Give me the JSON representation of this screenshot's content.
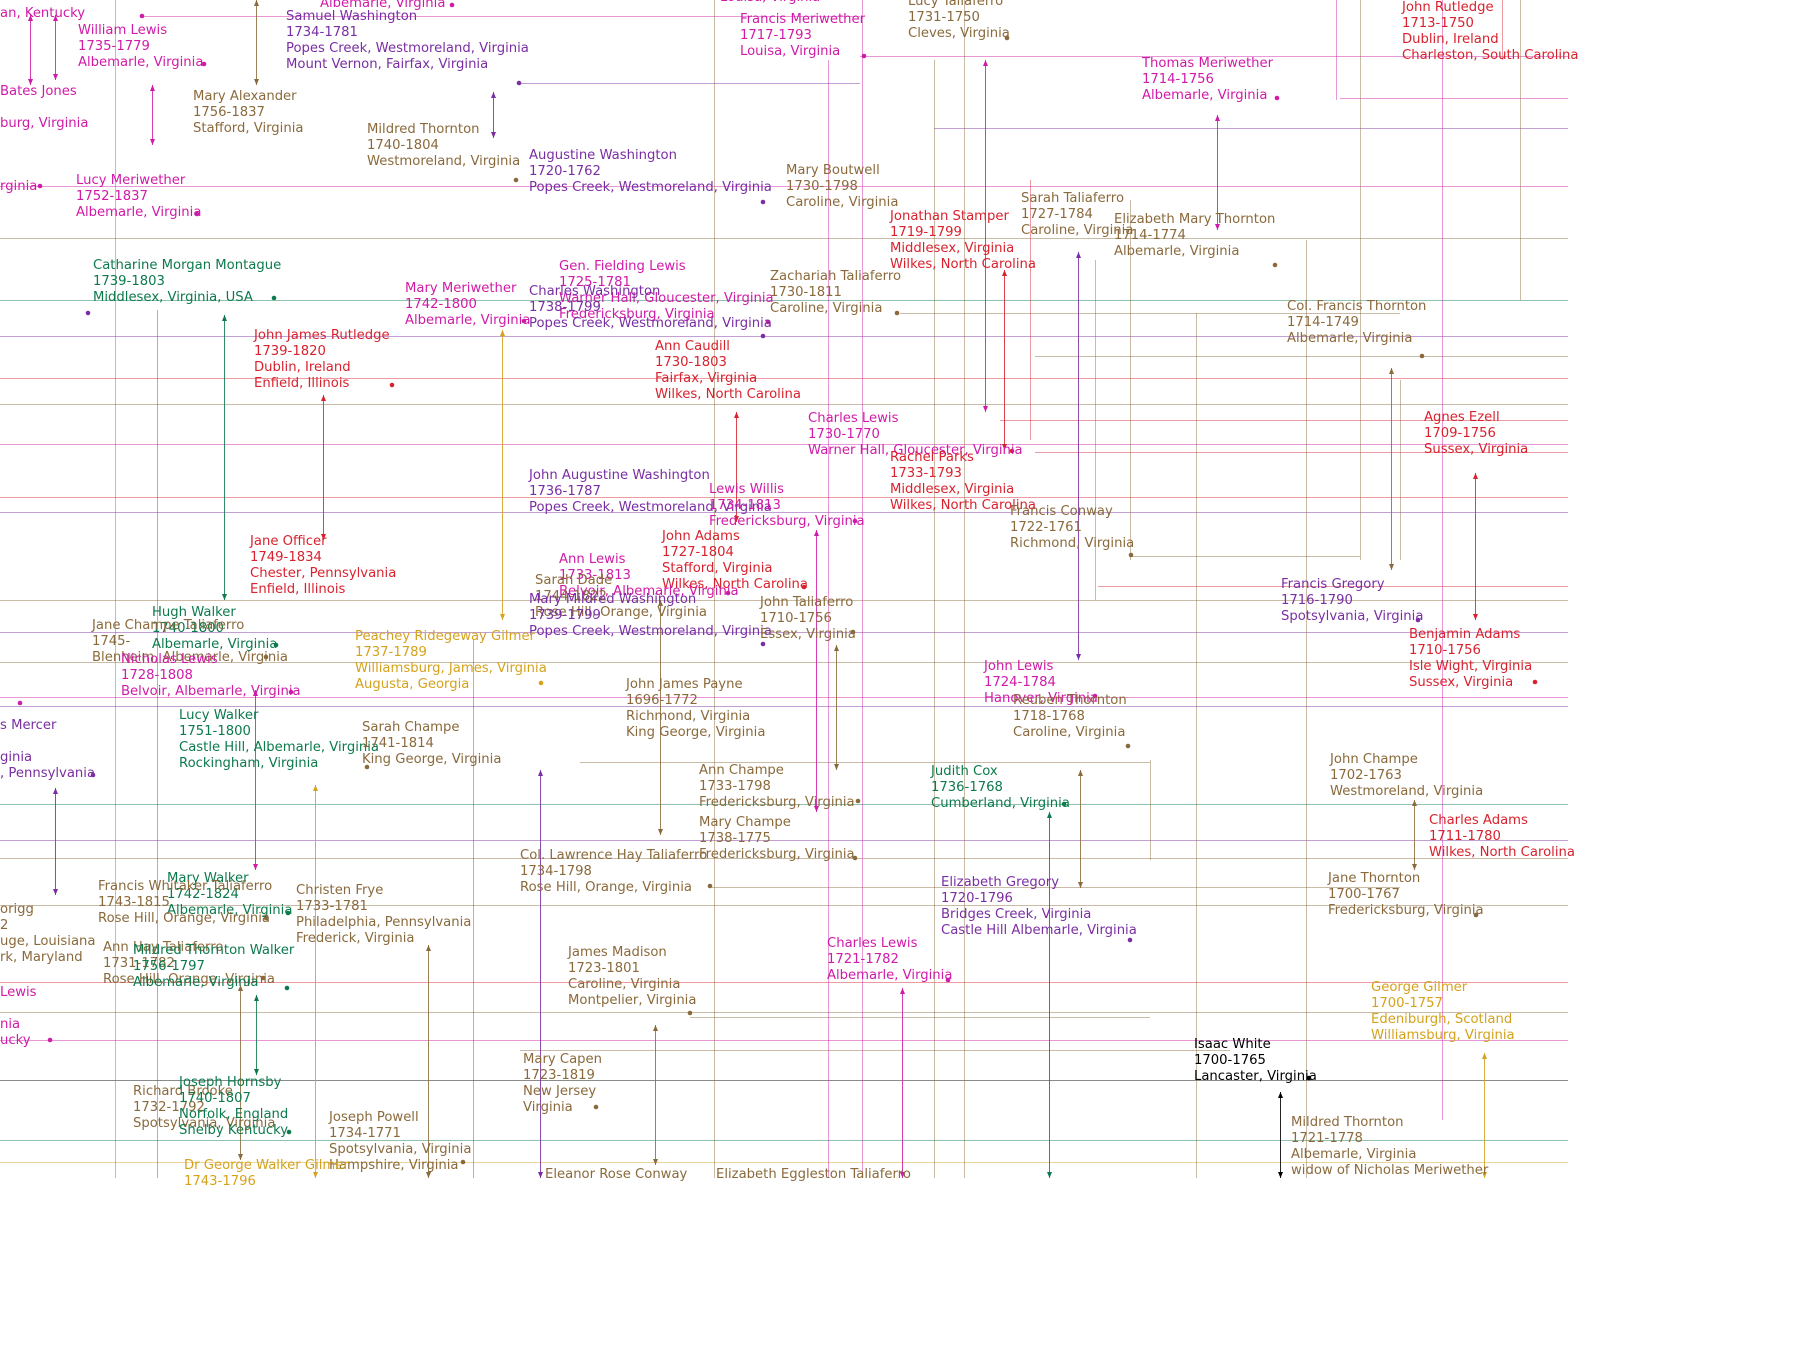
{
  "colors": {
    "magenta": "#d01ba8",
    "purple": "#7a2ea3",
    "red": "#d8222e",
    "brown": "#8a6a3c",
    "green": "#0d7a4d",
    "gold": "#d4a21c",
    "black": "#000000"
  },
  "people": [
    {
      "id": "p1",
      "color": "magenta",
      "lines": [
        "William Lewis",
        "1735-1779",
        "Albemarle, Virginia"
      ]
    },
    {
      "id": "p2",
      "color": "purple",
      "lines": [
        "Samuel Washington",
        "1734-1781",
        "Popes Creek, Westmoreland, Virginia",
        "Mount Vernon, Fairfax, Virginia"
      ]
    },
    {
      "id": "p3",
      "color": "magenta",
      "lines": [
        "Francis Meriwether",
        "1717-1793",
        "Louisa, Virginia"
      ]
    },
    {
      "id": "p4",
      "color": "brown",
      "lines": [
        "Lucy Taliaferro",
        "1731-1750",
        "Cleves, Virginia"
      ]
    },
    {
      "id": "p5",
      "color": "red",
      "lines": [
        "John Rutledge",
        "1713-1750",
        "Dublin, Ireland",
        "Charleston, South Carolina"
      ]
    },
    {
      "id": "p6",
      "color": "magenta",
      "lines": [
        "Thomas Meriwether",
        "1714-1756",
        "Albemarle, Virginia"
      ]
    },
    {
      "id": "p7",
      "color": "brown",
      "lines": [
        "Mary Alexander",
        "1756-1837",
        "Stafford, Virginia"
      ]
    },
    {
      "id": "p8",
      "color": "brown",
      "lines": [
        "Mildred Thornton",
        "1740-1804",
        "Westmoreland, Virginia"
      ]
    },
    {
      "id": "p9",
      "color": "purple",
      "lines": [
        "Augustine Washington",
        "1720-1762",
        "Popes Creek, Westmoreland, Virginia"
      ]
    },
    {
      "id": "p10",
      "color": "brown",
      "lines": [
        "Mary Boutwell",
        "1730-1798",
        "Caroline, Virginia"
      ]
    },
    {
      "id": "p11",
      "color": "magenta",
      "lines": [
        "Lucy Meriwether",
        "1752-1837",
        "Albemarle, Virginia"
      ]
    },
    {
      "id": "p12",
      "color": "red",
      "lines": [
        "Jonathan Stamper",
        "1719-1799",
        "Middlesex, Virginia",
        "Wilkes, North Carolina"
      ]
    },
    {
      "id": "p13",
      "color": "brown",
      "lines": [
        "Sarah Taliaferro",
        "1727-1784",
        "Caroline, Virginia"
      ]
    },
    {
      "id": "p14",
      "color": "brown",
      "lines": [
        "Elizabeth Mary Thornton",
        "1714-1774",
        "Albemarle, Virginia"
      ]
    },
    {
      "id": "p15",
      "color": "green",
      "lines": [
        "Catharine Morgan Montague",
        "1739-1803",
        "Middlesex, Virginia, USA"
      ]
    },
    {
      "id": "p16",
      "color": "magenta",
      "lines": [
        "Gen. Fielding Lewis",
        "1725-1781",
        "Warner Hall, Gloucester, Virginia",
        "Fredericksburg, Virginia"
      ]
    },
    {
      "id": "p17",
      "color": "brown",
      "lines": [
        "Zachariah Taliaferro",
        "1730-1811",
        "Caroline, Virginia"
      ]
    },
    {
      "id": "p18",
      "color": "magenta",
      "lines": [
        "Mary Meriwether",
        "1742-1800",
        "Albemarle, Virginia"
      ]
    },
    {
      "id": "p19",
      "color": "purple",
      "lines": [
        "Charles Washington",
        "1738-1799",
        "Popes Creek, Westmoreland, Virginia"
      ]
    },
    {
      "id": "p20",
      "color": "brown",
      "lines": [
        "Col. Francis Thornton",
        "1714-1749",
        "Albemarle, Virginia"
      ]
    },
    {
      "id": "p21",
      "color": "red",
      "lines": [
        "John James Rutledge",
        "1739-1820",
        "Dublin, Ireland",
        "Enfield, Illinois"
      ]
    },
    {
      "id": "p22",
      "color": "red",
      "lines": [
        "Ann Caudill",
        "1730-1803",
        "Fairfax, Virginia",
        "Wilkes, North Carolina"
      ]
    },
    {
      "id": "p23",
      "color": "red",
      "lines": [
        "Agnes Ezell",
        "1709-1756",
        "Sussex, Virginia"
      ]
    },
    {
      "id": "p24",
      "color": "magenta",
      "lines": [
        "Charles Lewis",
        "1730-1770",
        "Warner Hall, Gloucester, Virginia"
      ]
    },
    {
      "id": "p25",
      "color": "red",
      "lines": [
        "Rachel Parks",
        "1733-1793",
        "Middlesex, Virginia",
        "Wilkes, North Carolina"
      ]
    },
    {
      "id": "p26",
      "color": "purple",
      "lines": [
        "John Augustine Washington",
        "1736-1787",
        "Popes Creek, Westmoreland, Virginia"
      ]
    },
    {
      "id": "p27",
      "color": "magenta",
      "lines": [
        "Lewis Willis",
        "1734-1813",
        "Fredericksburg, Virginia"
      ]
    },
    {
      "id": "p28",
      "color": "brown",
      "lines": [
        "Francis Conway",
        "1722-1761",
        "Richmond, Virginia"
      ]
    },
    {
      "id": "p29",
      "color": "red",
      "lines": [
        "Jane Officer",
        "1749-1834",
        "Chester, Pennsylvania",
        "Enfield, Illinois"
      ]
    },
    {
      "id": "p30",
      "color": "red",
      "lines": [
        "John Adams",
        "1727-1804",
        "Stafford, Virginia",
        "Wilkes, North Carolina"
      ]
    },
    {
      "id": "p31",
      "color": "magenta",
      "lines": [
        "Ann Lewis",
        "1733-1813",
        "Belvoir, Albemarle, Virginia"
      ]
    },
    {
      "id": "p32",
      "color": "brown",
      "lines": [
        "Sarah Dade",
        "1744-1822",
        "Rose Hill, Orange, Virginia"
      ]
    },
    {
      "id": "p33",
      "color": "purple",
      "lines": [
        "Mary Mildred Washington",
        "1739-1799",
        "Popes Creek, Westmoreland, Virginia"
      ]
    },
    {
      "id": "p34",
      "color": "purple",
      "lines": [
        "Francis Gregory",
        "1716-1790",
        "Spotsylvania, Virginia"
      ]
    },
    {
      "id": "p35",
      "color": "brown",
      "lines": [
        "John Taliaferro",
        "1710-1756",
        "Essex, Virginia"
      ]
    },
    {
      "id": "p36",
      "color": "green",
      "lines": [
        "Hugh Walker",
        "1740-1800",
        "Albemarle, Virginia"
      ]
    },
    {
      "id": "p37",
      "color": "brown",
      "lines": [
        "Jane Champe Taliaferro",
        "1745-",
        "Blenheim, Albemarle, Virginia"
      ]
    },
    {
      "id": "p38",
      "color": "red",
      "lines": [
        "Benjamin Adams",
        "1710-1756",
        "Isle Wight, Virginia",
        "Sussex, Virginia"
      ]
    },
    {
      "id": "p39",
      "color": "gold",
      "lines": [
        "Peachey Ridegeway Gilmer",
        "1737-1789",
        "Williamsburg, James, Virginia",
        "Augusta, Georgia"
      ]
    },
    {
      "id": "p40",
      "color": "magenta",
      "lines": [
        "Nicholas Lewis",
        "1728-1808",
        "Belvoir, Albemarle, Virginia"
      ]
    },
    {
      "id": "p41",
      "color": "magenta",
      "lines": [
        "John Lewis",
        "1724-1784",
        "Hanover, Virginia"
      ]
    },
    {
      "id": "p42",
      "color": "brown",
      "lines": [
        "John James Payne",
        "1696-1772",
        "Richmond, Virginia",
        "King George, Virginia"
      ]
    },
    {
      "id": "p43",
      "color": "brown",
      "lines": [
        "Reuben Thornton",
        "1718-1768",
        "Caroline, Virginia"
      ]
    },
    {
      "id": "p44",
      "color": "green",
      "lines": [
        "Lucy Walker",
        "1751-1800",
        "Castle Hill, Albemarle, Virginia",
        "Rockingham, Virginia"
      ]
    },
    {
      "id": "p45",
      "color": "brown",
      "lines": [
        "Sarah Champe",
        "1741-1814",
        "King George, Virginia"
      ]
    },
    {
      "id": "p46",
      "color": "brown",
      "lines": [
        "John Champe",
        "1702-1763",
        "Westmoreland, Virginia"
      ]
    },
    {
      "id": "p47",
      "color": "brown",
      "lines": [
        "Ann Champe",
        "1733-1798",
        "Fredericksburg, Virginia"
      ]
    },
    {
      "id": "p48",
      "color": "green",
      "lines": [
        "Judith Cox",
        "1736-1768",
        "Cumberland, Virginia"
      ]
    },
    {
      "id": "p49",
      "color": "red",
      "lines": [
        "Charles Adams",
        "1711-1780",
        "Wilkes, North Carolina"
      ]
    },
    {
      "id": "p50",
      "color": "brown",
      "lines": [
        "Mary Champe",
        "1738-1775",
        "Fredericksburg, Virginia"
      ]
    },
    {
      "id": "p51",
      "color": "brown",
      "lines": [
        "Col. Lawrence Hay Taliaferro",
        "1734-1798",
        "Rose Hill, Orange, Virginia"
      ]
    },
    {
      "id": "p52",
      "color": "green",
      "lines": [
        "Mary Walker",
        "1742-1824",
        "Albemarle, Virginia"
      ]
    },
    {
      "id": "p53",
      "color": "brown",
      "lines": [
        "Francis Whitaker Taliaferro",
        "1743-1815",
        "Rose Hill, Orange, Virginia"
      ]
    },
    {
      "id": "p54",
      "color": "brown",
      "lines": [
        "Christen Frye",
        "1733-1781",
        "Philadelphia, Pennsylvania",
        "Frederick, Virginia"
      ]
    },
    {
      "id": "p55",
      "color": "purple",
      "lines": [
        "Elizabeth Gregory",
        "1720-1796",
        "Bridges Creek, Virginia",
        "Castle Hill Albemarle, Virginia"
      ]
    },
    {
      "id": "p56",
      "color": "brown",
      "lines": [
        "Jane Thornton",
        "1700-1767",
        "Fredericksburg, Virginia"
      ]
    },
    {
      "id": "p57",
      "color": "brown",
      "lines": [
        "Ann Hay Taliaferro",
        "1731-1782",
        "Rose Hill, Orange, Virginia"
      ]
    },
    {
      "id": "p58",
      "color": "green",
      "lines": [
        "Mildred Thornton Walker",
        "1756-1797",
        "Albemarle, Virginia"
      ]
    },
    {
      "id": "p59",
      "color": "brown",
      "lines": [
        "James Madison",
        "1723-1801",
        "Caroline, Virginia",
        "Montpelier, Virginia"
      ]
    },
    {
      "id": "p60",
      "color": "magenta",
      "lines": [
        "Charles Lewis",
        "1721-1782",
        "Albemarle, Virginia"
      ]
    },
    {
      "id": "p61",
      "color": "gold",
      "lines": [
        "George Gilmer",
        "1700-1757",
        "Edeniburgh, Scotland",
        "Williamsburg, Virginia"
      ]
    },
    {
      "id": "p62",
      "color": "black",
      "lines": [
        "Isaac White",
        "1700-1765",
        "Lancaster, Virginia"
      ]
    },
    {
      "id": "p63",
      "color": "brown",
      "lines": [
        "Mary Capen",
        "1723-1819",
        "New Jersey",
        "Virginia"
      ]
    },
    {
      "id": "p64",
      "color": "brown",
      "lines": [
        "Richard Brooke",
        "1732-1792",
        "Spotsylvania, Virginia"
      ]
    },
    {
      "id": "p65",
      "color": "green",
      "lines": [
        "Joseph Hornsby",
        "1740-1807",
        "Norfolk, England",
        "Shelby Kentucky"
      ]
    },
    {
      "id": "p66",
      "color": "brown",
      "lines": [
        "Joseph Powell",
        "1734-1771",
        "Spotsylvania, Virginia",
        "Hampshire, Virginia"
      ]
    },
    {
      "id": "p67",
      "color": "brown",
      "lines": [
        "Mildred Thornton",
        "1721-1778",
        "Albemarle, Virginia",
        "widow of Nicholas Meriwether"
      ]
    },
    {
      "id": "p68",
      "color": "gold",
      "lines": [
        "Dr George Walker Gilmer",
        "1743-1796"
      ]
    },
    {
      "id": "p69",
      "color": "brown",
      "lines": [
        "Eleanor Rose Conway"
      ]
    },
    {
      "id": "p70",
      "color": "brown",
      "lines": [
        "Elizabeth Eggleston Taliaferro"
      ]
    },
    {
      "id": "f1",
      "color": "magenta",
      "lines": [
        "Albemarle, Virginia"
      ]
    },
    {
      "id": "f2",
      "color": "magenta",
      "lines": [
        "Louisa, Virginia"
      ]
    },
    {
      "id": "f3",
      "color": "magenta",
      "lines": [
        "an, Kentucky"
      ]
    },
    {
      "id": "f4",
      "color": "magenta",
      "lines": [
        "Bates Jones"
      ]
    },
    {
      "id": "f5",
      "color": "magenta",
      "lines": [
        "burg, Virginia"
      ]
    },
    {
      "id": "f6",
      "color": "magenta",
      "lines": [
        "rginia"
      ]
    },
    {
      "id": "f7",
      "color": "purple",
      "lines": [
        "s Mercer"
      ]
    },
    {
      "id": "f8",
      "color": "purple",
      "lines": [
        "ginia",
        ", Pennsylvania"
      ]
    },
    {
      "id": "f9",
      "color": "brown",
      "lines": [
        "origg",
        "2",
        "uge, Louisiana",
        "rk, Maryland"
      ]
    },
    {
      "id": "f10",
      "color": "magenta",
      "lines": [
        "Lewis"
      ]
    },
    {
      "id": "f11",
      "color": "magenta",
      "lines": [
        "nia",
        "ucky"
      ]
    }
  ]
}
